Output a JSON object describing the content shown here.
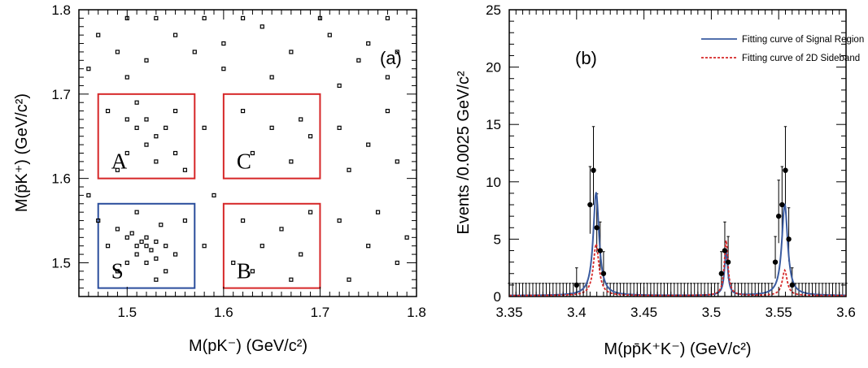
{
  "chart_data": [
    {
      "panel": "(a)",
      "type": "scatter",
      "xlabel": "M(pK⁻) (GeV/c²)",
      "ylabel": "M(p̄K⁺) (GeV/c²)",
      "xlim": [
        1.45,
        1.8
      ],
      "ylim": [
        1.46,
        1.8
      ],
      "xticks": [
        "1.5",
        "1.6",
        "1.7",
        "1.8"
      ],
      "yticks": [
        "1.5",
        "1.6",
        "1.7",
        "1.8"
      ],
      "regions": [
        {
          "label": "A",
          "x": [
            1.47,
            1.57
          ],
          "y": [
            1.6,
            1.7
          ],
          "color": "#d62728"
        },
        {
          "label": "C",
          "x": [
            1.6,
            1.7
          ],
          "y": [
            1.6,
            1.7
          ],
          "color": "#d62728"
        },
        {
          "label": "S",
          "x": [
            1.47,
            1.57
          ],
          "y": [
            1.47,
            1.57
          ],
          "color": "#2a4d9c"
        },
        {
          "label": "B",
          "x": [
            1.6,
            1.7
          ],
          "y": [
            1.47,
            1.57
          ],
          "color": "#d62728"
        }
      ],
      "points": [
        [
          1.5,
          1.79
        ],
        [
          1.53,
          1.79
        ],
        [
          1.58,
          1.79
        ],
        [
          1.62,
          1.79
        ],
        [
          1.7,
          1.79
        ],
        [
          1.77,
          1.79
        ],
        [
          1.47,
          1.77
        ],
        [
          1.55,
          1.77
        ],
        [
          1.6,
          1.76
        ],
        [
          1.64,
          1.78
        ],
        [
          1.71,
          1.77
        ],
        [
          1.75,
          1.76
        ],
        [
          1.49,
          1.75
        ],
        [
          1.52,
          1.74
        ],
        [
          1.57,
          1.75
        ],
        [
          1.67,
          1.75
        ],
        [
          1.74,
          1.74
        ],
        [
          1.78,
          1.75
        ],
        [
          1.46,
          1.73
        ],
        [
          1.5,
          1.72
        ],
        [
          1.6,
          1.73
        ],
        [
          1.65,
          1.72
        ],
        [
          1.72,
          1.71
        ],
        [
          1.77,
          1.72
        ],
        [
          1.48,
          1.68
        ],
        [
          1.5,
          1.67
        ],
        [
          1.51,
          1.66
        ],
        [
          1.52,
          1.67
        ],
        [
          1.53,
          1.65
        ],
        [
          1.54,
          1.66
        ],
        [
          1.55,
          1.68
        ],
        [
          1.52,
          1.64
        ],
        [
          1.5,
          1.63
        ],
        [
          1.53,
          1.62
        ],
        [
          1.55,
          1.63
        ],
        [
          1.49,
          1.61
        ],
        [
          1.56,
          1.61
        ],
        [
          1.51,
          1.69
        ],
        [
          1.62,
          1.68
        ],
        [
          1.65,
          1.66
        ],
        [
          1.68,
          1.67
        ],
        [
          1.63,
          1.63
        ],
        [
          1.67,
          1.62
        ],
        [
          1.69,
          1.65
        ],
        [
          1.72,
          1.66
        ],
        [
          1.75,
          1.64
        ],
        [
          1.78,
          1.62
        ],
        [
          1.73,
          1.61
        ],
        [
          1.77,
          1.68
        ],
        [
          1.49,
          1.54
        ],
        [
          1.5,
          1.53
        ],
        [
          1.51,
          1.52
        ],
        [
          1.515,
          1.525
        ],
        [
          1.52,
          1.53
        ],
        [
          1.52,
          1.52
        ],
        [
          1.525,
          1.515
        ],
        [
          1.53,
          1.525
        ],
        [
          1.51,
          1.51
        ],
        [
          1.52,
          1.5
        ],
        [
          1.53,
          1.505
        ],
        [
          1.54,
          1.52
        ],
        [
          1.505,
          1.535
        ],
        [
          1.535,
          1.545
        ],
        [
          1.5,
          1.5
        ],
        [
          1.55,
          1.51
        ],
        [
          1.48,
          1.52
        ],
        [
          1.49,
          1.49
        ],
        [
          1.56,
          1.55
        ],
        [
          1.51,
          1.56
        ],
        [
          1.54,
          1.49
        ],
        [
          1.47,
          1.55
        ],
        [
          1.53,
          1.48
        ],
        [
          1.62,
          1.55
        ],
        [
          1.64,
          1.52
        ],
        [
          1.66,
          1.54
        ],
        [
          1.68,
          1.51
        ],
        [
          1.63,
          1.49
        ],
        [
          1.67,
          1.48
        ],
        [
          1.69,
          1.56
        ],
        [
          1.61,
          1.5
        ],
        [
          1.72,
          1.55
        ],
        [
          1.75,
          1.52
        ],
        [
          1.78,
          1.5
        ],
        [
          1.73,
          1.48
        ],
        [
          1.76,
          1.56
        ],
        [
          1.59,
          1.58
        ],
        [
          1.46,
          1.58
        ],
        [
          1.58,
          1.52
        ],
        [
          1.79,
          1.53
        ],
        [
          1.58,
          1.66
        ]
      ]
    },
    {
      "panel": "(b)",
      "type": "line",
      "xlabel": "M(pp̄K⁺K⁻) (GeV/c²)",
      "ylabel": "Events /0.0025 GeV/c²",
      "xlim": [
        3.35,
        3.6
      ],
      "ylim": [
        0,
        25
      ],
      "xticks": [
        "3.35",
        "3.4",
        "3.45",
        "3.5",
        "3.55",
        "3.6"
      ],
      "yticks": [
        "0",
        "5",
        "10",
        "15",
        "20",
        "25"
      ],
      "bin_width": 0.0025,
      "data": [
        [
          3.4,
          1
        ],
        [
          3.41,
          8
        ],
        [
          3.4125,
          11
        ],
        [
          3.415,
          6
        ],
        [
          3.4175,
          4
        ],
        [
          3.42,
          2
        ],
        [
          3.5075,
          2
        ],
        [
          3.51,
          4
        ],
        [
          3.5125,
          3
        ],
        [
          3.5475,
          3
        ],
        [
          3.55,
          7
        ],
        [
          3.5525,
          8
        ],
        [
          3.555,
          11
        ],
        [
          3.5575,
          5
        ],
        [
          3.56,
          1
        ]
      ],
      "series": [
        {
          "name": "Fitting curve of Signal Region",
          "color": "#3a5ba0",
          "style": "solid",
          "peaks": [
            {
              "mu": 3.4145,
              "sigma": 0.0026,
              "amp": 9
            },
            {
              "mu": 3.511,
              "sigma": 0.0015,
              "amp": 3.8
            },
            {
              "mu": 3.5545,
              "sigma": 0.0026,
              "amp": 8
            }
          ]
        },
        {
          "name": "Fitting curve of 2D Sideband",
          "color": "#d62728",
          "style": "dashed",
          "peaks": [
            {
              "mu": 3.4145,
              "sigma": 0.0025,
              "amp": 4.5
            },
            {
              "mu": 3.511,
              "sigma": 0.0016,
              "amp": 4.8
            },
            {
              "mu": 3.5545,
              "sigma": 0.0022,
              "amp": 2.2
            }
          ]
        }
      ]
    }
  ]
}
